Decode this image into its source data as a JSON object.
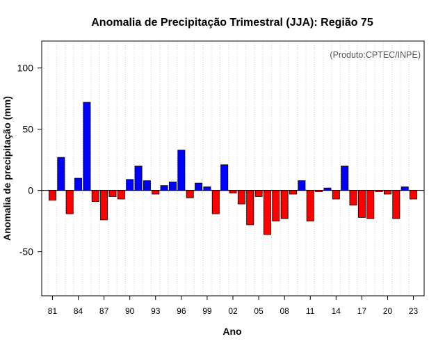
{
  "chart_data": {
    "type": "bar",
    "title": "Anomalia de Precipitação Trimestral (JJA): Região 75",
    "xlabel": "Ano",
    "ylabel": "Anomalia de precipitação (mm)",
    "source_note": "(Produto:CPTEC/INPE)",
    "ylim": [
      -86,
      122
    ],
    "yticks": [
      -50,
      0,
      50,
      100
    ],
    "ytick_labels": [
      "-50",
      "0",
      "50",
      "100"
    ],
    "xtick_years": [
      1981,
      1984,
      1987,
      1990,
      1993,
      1996,
      1999,
      2002,
      2005,
      2008,
      2011,
      2014,
      2017,
      2020,
      2023
    ],
    "xtick_labels": [
      "81",
      "84",
      "87",
      "90",
      "93",
      "96",
      "99",
      "02",
      "05",
      "08",
      "11",
      "14",
      "17",
      "20",
      "23"
    ],
    "colors": {
      "positive": "#0000ff",
      "negative": "#ff0000",
      "zero_line": "#000000",
      "grid": "#d3d3d3"
    },
    "grid": true,
    "years": [
      1981,
      1982,
      1983,
      1984,
      1985,
      1986,
      1987,
      1988,
      1989,
      1990,
      1991,
      1992,
      1993,
      1994,
      1995,
      1996,
      1997,
      1998,
      1999,
      2000,
      2001,
      2002,
      2003,
      2004,
      2005,
      2006,
      2007,
      2008,
      2009,
      2010,
      2011,
      2012,
      2013,
      2014,
      2015,
      2016,
      2017,
      2018,
      2019,
      2020,
      2021,
      2022,
      2023
    ],
    "values": [
      -8,
      27,
      -19,
      10,
      72,
      -9,
      -24,
      -5,
      -7,
      9,
      20,
      8,
      -3,
      4,
      7,
      33,
      -6,
      6,
      3,
      -19,
      21,
      -2,
      -11,
      -28,
      -5,
      -36,
      -25,
      -23,
      -3,
      8,
      -25,
      -1,
      2,
      -7,
      20,
      -12,
      -22,
      -23,
      -1,
      -3,
      -23,
      3,
      -7
    ]
  }
}
